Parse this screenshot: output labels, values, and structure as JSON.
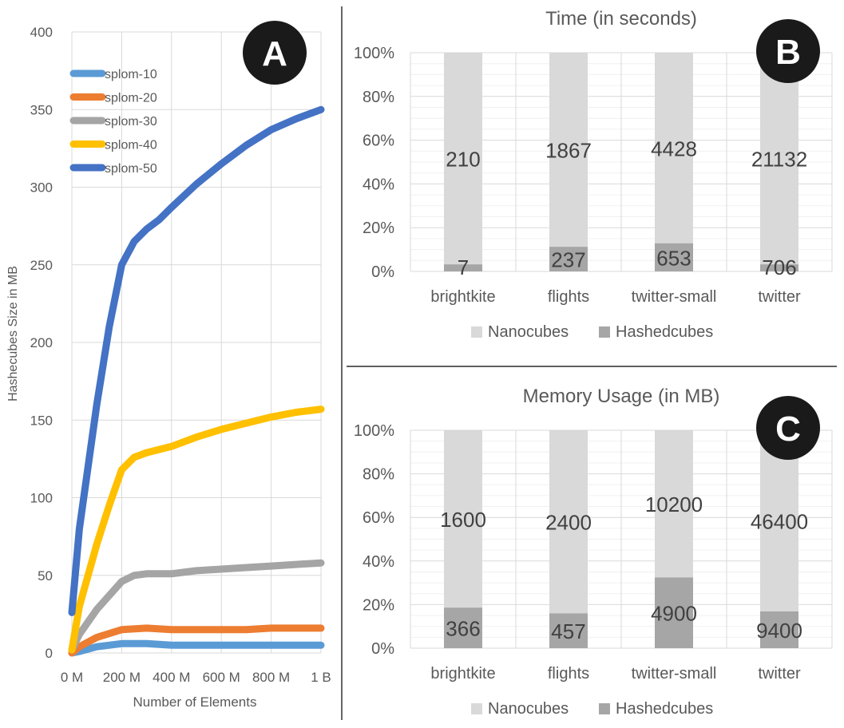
{
  "colors": {
    "splom10": "#5b9bd5",
    "splom20": "#ed7d31",
    "splom30": "#a5a5a5",
    "splom40": "#ffc000",
    "splom50": "#4472c4",
    "nanocubes": "#d9d9d9",
    "hashedcubes": "#a6a6a6",
    "grid": "#d9d9d9",
    "badge_bg": "#1a1a1a",
    "badge_text": "#ffffff"
  },
  "chart_data": [
    {
      "id": "A",
      "badge": "A",
      "type": "line",
      "xlabel": "Number of Elements",
      "ylabel": "Hashecubes Size in MB",
      "xlim": [
        0,
        1000
      ],
      "ylim": [
        0,
        400
      ],
      "x_tick_values": [
        0,
        200,
        400,
        600,
        800,
        1000
      ],
      "x_tick_labels": [
        "0 M",
        "200 M",
        "400 M",
        "600 M",
        "800 M",
        "1 B"
      ],
      "y_ticks": [
        "0",
        "50",
        "100",
        "150",
        "200",
        "250",
        "300",
        "350",
        "400"
      ],
      "grid": true,
      "legend_position": "top-left",
      "series": [
        {
          "name": "splom-10",
          "color_key": "splom10",
          "x": [
            0,
            30,
            100,
            200,
            300,
            400,
            500,
            600,
            700,
            800,
            900,
            1000
          ],
          "y": [
            0,
            1,
            4,
            6,
            6,
            5,
            5,
            5,
            5,
            5,
            5,
            5
          ]
        },
        {
          "name": "splom-20",
          "color_key": "splom20",
          "x": [
            0,
            30,
            100,
            200,
            300,
            400,
            500,
            600,
            700,
            800,
            900,
            1000
          ],
          "y": [
            0,
            4,
            10,
            15,
            16,
            15,
            15,
            15,
            15,
            16,
            16,
            16
          ]
        },
        {
          "name": "splom-30",
          "color_key": "splom30",
          "x": [
            0,
            30,
            100,
            200,
            250,
            300,
            400,
            500,
            600,
            700,
            800,
            900,
            1000
          ],
          "y": [
            2,
            12,
            28,
            46,
            50,
            51,
            51,
            53,
            54,
            55,
            56,
            57,
            58
          ]
        },
        {
          "name": "splom-40",
          "color_key": "splom40",
          "x": [
            0,
            30,
            100,
            150,
            200,
            250,
            300,
            400,
            500,
            600,
            700,
            800,
            900,
            1000
          ],
          "y": [
            2,
            30,
            70,
            95,
            118,
            126,
            129,
            133,
            139,
            144,
            148,
            152,
            155,
            157
          ]
        },
        {
          "name": "splom-50",
          "color_key": "splom50",
          "x": [
            0,
            30,
            100,
            150,
            200,
            250,
            300,
            350,
            400,
            500,
            600,
            700,
            800,
            900,
            1000
          ],
          "y": [
            26,
            80,
            160,
            210,
            250,
            265,
            273,
            279,
            287,
            302,
            315,
            327,
            337,
            344,
            350
          ]
        }
      ]
    },
    {
      "id": "B",
      "badge": "B",
      "type": "bar",
      "stacked": "percent",
      "title": "Time (in seconds)",
      "categories": [
        "brightkite",
        "flights",
        "twitter-small",
        "twitter"
      ],
      "y_ticks": [
        "0%",
        "20%",
        "40%",
        "60%",
        "80%",
        "100%"
      ],
      "grid": true,
      "legend_position": "bottom",
      "series": [
        {
          "name": "Nanocubes",
          "color_key": "nanocubes",
          "values": [
            210,
            1867,
            4428,
            21132
          ],
          "labels": [
            "210",
            "1867",
            "4428",
            "21132"
          ]
        },
        {
          "name": "Hashedcubes",
          "color_key": "hashedcubes",
          "values": [
            7,
            237,
            653,
            706
          ],
          "labels": [
            "7",
            "237",
            "653",
            "706"
          ]
        }
      ]
    },
    {
      "id": "C",
      "badge": "C",
      "type": "bar",
      "stacked": "percent",
      "title": "Memory Usage (in MB)",
      "categories": [
        "brightkite",
        "flights",
        "twitter-small",
        "twitter"
      ],
      "y_ticks": [
        "0%",
        "20%",
        "40%",
        "60%",
        "80%",
        "100%"
      ],
      "grid": true,
      "legend_position": "bottom",
      "series": [
        {
          "name": "Nanocubes",
          "color_key": "nanocubes",
          "values": [
            1600,
            2400,
            10200,
            46400
          ],
          "labels": [
            "1600",
            "2400",
            "10200",
            "46400"
          ]
        },
        {
          "name": "Hashedcubes",
          "color_key": "hashedcubes",
          "values": [
            366,
            457,
            4900,
            9400
          ],
          "labels": [
            "366",
            "457",
            "4900",
            "9400"
          ]
        }
      ]
    }
  ]
}
